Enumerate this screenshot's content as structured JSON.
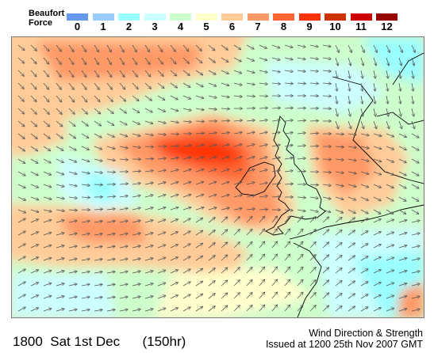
{
  "legend": {
    "title_line1": "Beaufort",
    "title_line2": "Force",
    "scale": [
      {
        "force": "0",
        "color": "#6699ee"
      },
      {
        "force": "1",
        "color": "#99ccff"
      },
      {
        "force": "2",
        "color": "#99ffff"
      },
      {
        "force": "3",
        "color": "#ccffff"
      },
      {
        "force": "4",
        "color": "#ccffcc"
      },
      {
        "force": "5",
        "color": "#ffffcc"
      },
      {
        "force": "6",
        "color": "#ffcc99"
      },
      {
        "force": "7",
        "color": "#ff9966"
      },
      {
        "force": "8",
        "color": "#ff6633"
      },
      {
        "force": "9",
        "color": "#ff3300"
      },
      {
        "force": "10",
        "color": "#cc3300"
      },
      {
        "force": "11",
        "color": "#cc0000"
      },
      {
        "force": "12",
        "color": "#990000"
      }
    ]
  },
  "map": {
    "arrow_icon": "wind-arrow-icon",
    "arrow_color": "#555555",
    "coastline_color": "#000000"
  },
  "footer": {
    "valid_time": "1800  Sat 1st Dec      (150hr)",
    "product": "Wind Direction & Strength",
    "issued": "Issued at 1200 25th Nov 2007 GMT"
  }
}
